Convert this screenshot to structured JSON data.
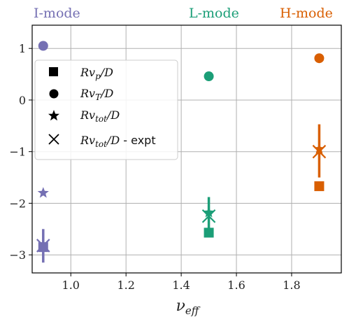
{
  "chart_data": {
    "type": "scatter",
    "title": "",
    "xlabel": "ν_eff",
    "ylabel": "",
    "xlim": [
      0.86,
      1.98
    ],
    "ylim": [
      -3.35,
      1.45
    ],
    "xticks": [
      1.0,
      1.2,
      1.4,
      1.6,
      1.8
    ],
    "yticks": [
      -3,
      -2,
      -1,
      0,
      1
    ],
    "xtick_labels": [
      "1.0",
      "1.2",
      "1.4",
      "1.6",
      "1.8"
    ],
    "ytick_labels": [
      "−3",
      "−2",
      "−1",
      "0",
      "1"
    ],
    "grid": true,
    "legend_position": "upper-left",
    "legend": [
      {
        "marker": "square",
        "label": "Rv_p/D"
      },
      {
        "marker": "circle",
        "label": "Rv_T/D"
      },
      {
        "marker": "star",
        "label": "Rv_tot/D"
      },
      {
        "marker": "x",
        "label": "Rv_tot/D - expt"
      }
    ],
    "groups": [
      {
        "label": "I-mode",
        "color": "#7570b3",
        "x": 0.9,
        "Rv_p_over_D": -2.85,
        "Rv_T_over_D": 1.05,
        "Rv_tot_over_D": -1.8,
        "expt": {
          "value": -2.82,
          "err_low": -3.15,
          "err_high": -2.5
        }
      },
      {
        "label": "L-mode",
        "color": "#1b9e77",
        "x": 1.5,
        "Rv_p_over_D": -2.57,
        "Rv_T_over_D": 0.46,
        "Rv_tot_over_D": -2.18,
        "expt": {
          "value": -2.25,
          "err_low": -2.65,
          "err_high": -1.88
        }
      },
      {
        "label": "H-mode",
        "color": "#d95f02",
        "x": 1.9,
        "Rv_p_over_D": -1.67,
        "Rv_T_over_D": 0.81,
        "Rv_tot_over_D": -0.95,
        "expt": {
          "value": -1.0,
          "err_low": -1.5,
          "err_high": -0.47
        }
      }
    ]
  }
}
